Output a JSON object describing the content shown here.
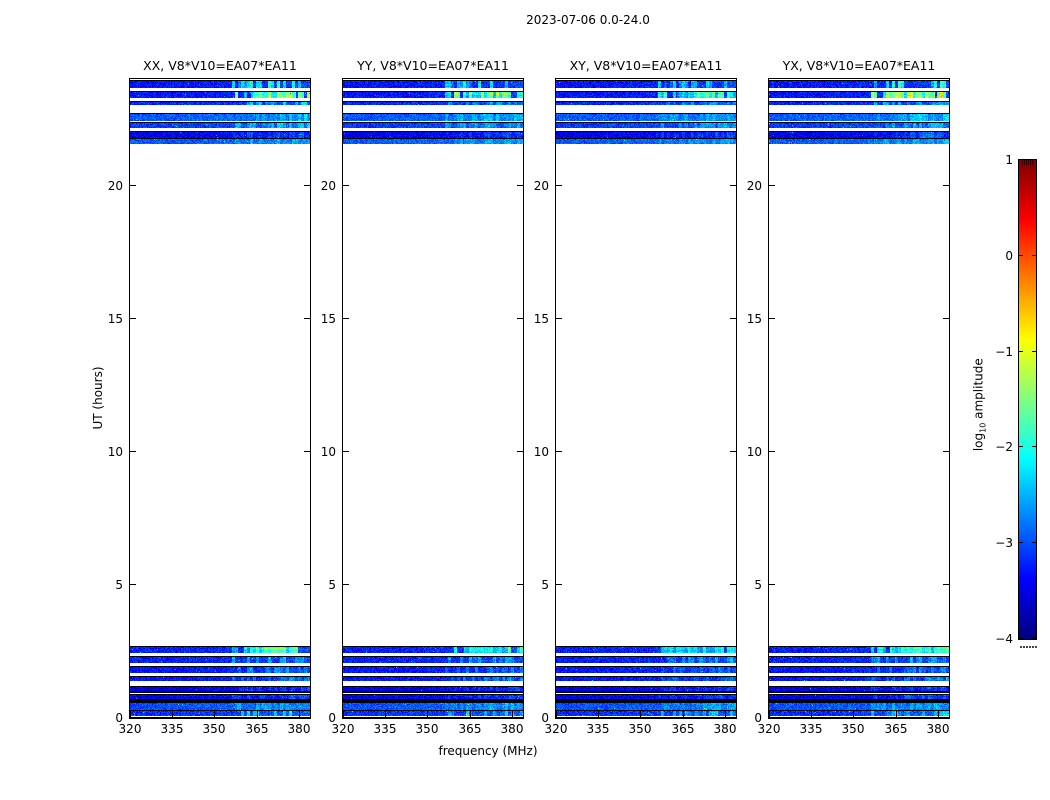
{
  "figure": {
    "title": "2023-07-06 0.0-24.0",
    "xlabel": "frequency (MHz)",
    "ylabel": "UT (hours)"
  },
  "panels": [
    {
      "id": "XX",
      "title": "XX, V8*V10=EA07*EA11",
      "rfi_gain": 1.0,
      "seed": 101
    },
    {
      "id": "YY",
      "title": "YY, V8*V10=EA07*EA11",
      "rfi_gain": 0.85,
      "seed": 202
    },
    {
      "id": "XY",
      "title": "XY, V8*V10=EA07*EA11",
      "rfi_gain": 0.7,
      "seed": 303
    },
    {
      "id": "YX",
      "title": "YX, V8*V10=EA07*EA11",
      "rfi_gain": 0.95,
      "seed": 404
    }
  ],
  "axes": {
    "x": {
      "min": 320,
      "max": 384,
      "ticks": [
        320,
        335,
        350,
        365,
        380
      ],
      "tick_labels": [
        "320",
        "335",
        "350",
        "365",
        "380"
      ]
    },
    "y": {
      "min": 0,
      "max": 24,
      "ticks": [
        0,
        5,
        10,
        15,
        20
      ],
      "tick_labels": [
        "0",
        "5",
        "10",
        "15",
        "20"
      ]
    }
  },
  "colorbar": {
    "label_pre": "log",
    "label_sub": "10",
    "label_post": " amplitude",
    "min": -4,
    "max": 1,
    "ticks": [
      1,
      0,
      -1,
      -2,
      -3,
      -4
    ],
    "tick_labels": [
      "1",
      "0",
      "−1",
      "−2",
      "−3",
      "−4"
    ],
    "colormap": "jet",
    "top_color": "#8b0000",
    "bottom_color": "#000080"
  },
  "chart_data": {
    "type": "heatmap",
    "title": "2023-07-06 0.0-24.0",
    "xlabel": "frequency (MHz)",
    "ylabel": "UT (hours)",
    "value_label": "log10 amplitude",
    "x_range_mhz": [
      320,
      384
    ],
    "t_range_hours": [
      0,
      24
    ],
    "value_range": [
      -4,
      1
    ],
    "colormap": "jet",
    "rfi_band_mhz": [
      356,
      383
    ],
    "scans": [
      {
        "t0": 23.68,
        "t1": 23.95,
        "level": -3.3,
        "rfi": 0.9
      },
      {
        "t0": 23.28,
        "t1": 23.56,
        "level": -3.3,
        "rfi": 1.6
      },
      {
        "t0": 23.02,
        "t1": 23.19,
        "level": -3.2,
        "rfi": 0.5
      },
      {
        "t0": 22.44,
        "t1": 22.73,
        "level": -2.95,
        "rfi": 0.35
      },
      {
        "t0": 22.17,
        "t1": 22.37,
        "level": -3.1,
        "rfi": 0.4
      },
      {
        "t0": 21.8,
        "t1": 22.04,
        "level": -3.45,
        "rfi": 0.3
      },
      {
        "t0": 21.57,
        "t1": 21.79,
        "level": -2.95,
        "rfi": 0.25
      },
      {
        "t0": 2.43,
        "t1": 2.7,
        "level": -3.25,
        "rfi": 1.1
      },
      {
        "t0": 2.08,
        "t1": 2.32,
        "level": -3.25,
        "rfi": 0.5
      },
      {
        "t0": 1.68,
        "t1": 1.94,
        "level": -3.3,
        "rfi": 0.4
      },
      {
        "t0": 1.38,
        "t1": 1.59,
        "level": -3.3,
        "rfi": 0.35
      },
      {
        "t0": 1.02,
        "t1": 1.21,
        "level": -3.5,
        "rfi": 0.25
      },
      {
        "t0": 0.71,
        "t1": 0.91,
        "level": -3.45,
        "rfi": 0.25
      },
      {
        "t0": 0.3,
        "t1": 0.59,
        "level": -3.0,
        "rfi": 0.3
      },
      {
        "t0": 0.06,
        "t1": 0.29,
        "level": -3.15,
        "rfi": 0.55
      },
      {
        "t0": 0.0,
        "t1": 0.025,
        "level": -3.3,
        "rfi": 0.0
      }
    ],
    "flagged_rows_hours": [
      [
        0.6,
        0.71
      ],
      [
        0.93,
        1.01
      ]
    ]
  }
}
